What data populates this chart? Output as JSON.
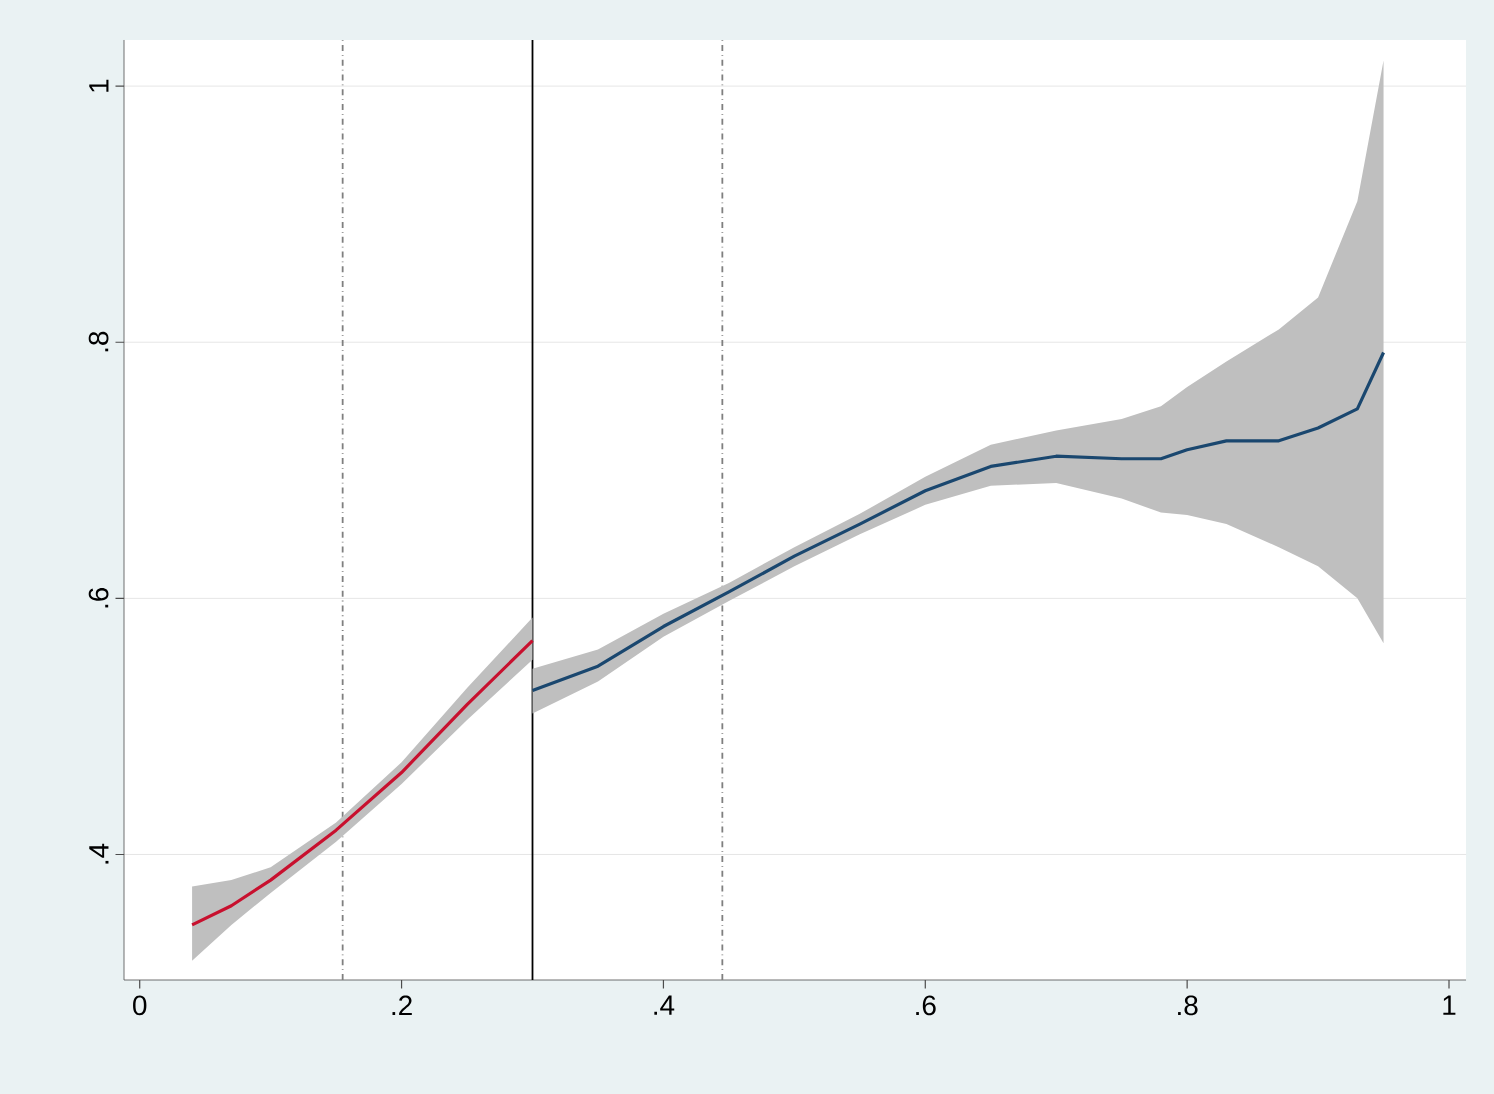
{
  "chart_data": {
    "type": "line",
    "xlim": [
      -0.012,
      1.013
    ],
    "ylim": [
      0.302,
      1.036
    ],
    "xticks": [
      0,
      {
        "value": 0.2,
        "label": ".2"
      },
      {
        "value": 0.4,
        "label": ".4"
      },
      {
        "value": 0.6,
        "label": ".6"
      },
      {
        "value": 0.8,
        "label": ".8"
      },
      1
    ],
    "yticks": [
      {
        "value": 0.4,
        "label": ".4"
      },
      {
        "value": 0.6,
        "label": ".6"
      },
      {
        "value": 0.8,
        "label": ".8"
      },
      1
    ],
    "grid": "y",
    "ref_lines": [
      {
        "axis": "x",
        "value": 0.155,
        "color": "#7f7f7f",
        "line_style": "dashed"
      },
      {
        "axis": "x",
        "value": 0.3,
        "color": "#000000",
        "line_style": "solid"
      },
      {
        "axis": "x",
        "value": 0.445,
        "color": "#7f7f7f",
        "line_style": "dashed"
      }
    ],
    "series": [
      {
        "color": "#c8102e",
        "x": [
          0.04,
          0.07,
          0.1,
          0.15,
          0.2,
          0.25,
          0.3
        ],
        "values": [
          0.345,
          0.36,
          0.38,
          0.419,
          0.464,
          0.517,
          0.567
        ],
        "lower": [
          0.317,
          0.345,
          0.37,
          0.41,
          0.455,
          0.505,
          0.552
        ],
        "upper": [
          0.375,
          0.38,
          0.39,
          0.425,
          0.472,
          0.53,
          0.585
        ]
      },
      {
        "color": "#1a476f",
        "x": [
          0.3,
          0.35,
          0.4,
          0.45,
          0.5,
          0.55,
          0.6,
          0.65,
          0.7,
          0.75,
          0.78,
          0.8,
          0.83,
          0.87,
          0.9,
          0.93,
          0.95
        ],
        "values": [
          0.528,
          0.547,
          0.578,
          0.605,
          0.633,
          0.658,
          0.684,
          0.703,
          0.711,
          0.709,
          0.709,
          0.716,
          0.723,
          0.723,
          0.733,
          0.748,
          0.792
        ],
        "lower": [
          0.51,
          0.535,
          0.57,
          0.598,
          0.625,
          0.65,
          0.673,
          0.688,
          0.69,
          0.678,
          0.667,
          0.665,
          0.658,
          0.64,
          0.625,
          0.6,
          0.565
        ],
        "upper": [
          0.545,
          0.56,
          0.588,
          0.612,
          0.64,
          0.666,
          0.695,
          0.72,
          0.731,
          0.74,
          0.75,
          0.765,
          0.785,
          0.81,
          0.835,
          0.91,
          1.02
        ]
      }
    ]
  }
}
